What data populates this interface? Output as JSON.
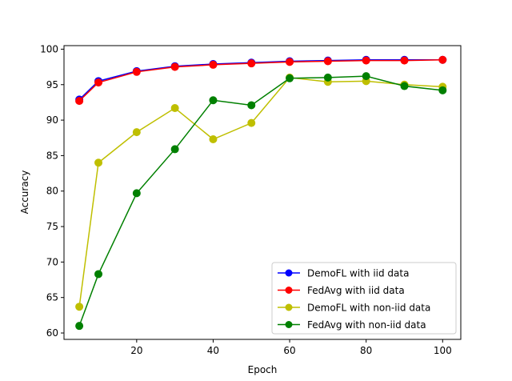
{
  "chart_data": {
    "type": "line",
    "xlabel": "Epoch",
    "ylabel": "Accuracy",
    "xlim": [
      1,
      104.75
    ],
    "ylim": [
      59.1,
      100.5
    ],
    "xticks": [
      20,
      40,
      60,
      80,
      100
    ],
    "yticks": [
      60,
      65,
      70,
      75,
      80,
      85,
      90,
      95,
      100
    ],
    "grid": false,
    "legend_position": "lower-right",
    "series": [
      {
        "name": "DemoFL with iid data",
        "color": "#0000ff",
        "x": [
          5,
          10,
          20,
          30,
          40,
          50,
          60,
          70,
          80,
          90,
          100
        ],
        "values": [
          92.9,
          95.5,
          96.9,
          97.6,
          97.9,
          98.1,
          98.3,
          98.4,
          98.5,
          98.5,
          98.5
        ]
      },
      {
        "name": "FedAvg with iid data",
        "color": "#ff0000",
        "x": [
          5,
          10,
          20,
          30,
          40,
          50,
          60,
          70,
          80,
          90,
          100
        ],
        "values": [
          92.7,
          95.3,
          96.8,
          97.5,
          97.8,
          98.0,
          98.2,
          98.3,
          98.4,
          98.4,
          98.5
        ]
      },
      {
        "name": "DemoFL with non-iid data",
        "color": "#bfbf00",
        "x": [
          5,
          10,
          20,
          30,
          40,
          50,
          60,
          70,
          80,
          90,
          100
        ],
        "values": [
          63.7,
          84.0,
          88.3,
          91.7,
          87.3,
          89.6,
          96.0,
          95.4,
          95.5,
          95.0,
          94.7
        ]
      },
      {
        "name": "FedAvg with non-iid data",
        "color": "#008000",
        "x": [
          5,
          10,
          20,
          30,
          40,
          50,
          60,
          70,
          80,
          90,
          100
        ],
        "values": [
          61.0,
          68.3,
          79.7,
          85.9,
          92.8,
          92.1,
          95.9,
          96.0,
          96.2,
          94.8,
          94.2
        ]
      }
    ]
  }
}
